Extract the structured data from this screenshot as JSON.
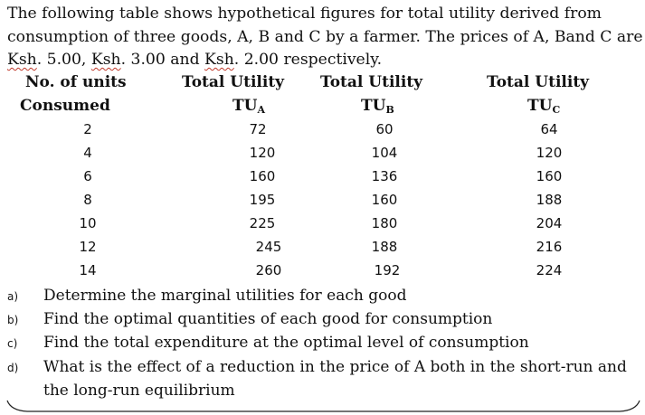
{
  "intro": {
    "line1": "The following table shows hypothetical figures for total utility derived from",
    "line2": "consumption of three goods, A, B and C by a farmer. The prices of A, Band C are",
    "line3_ksh1": "Ksh",
    "line3_rest1": ". 5.00, ",
    "line3_ksh2": "Ksh",
    "line3_rest2": ". 3.00 and ",
    "line3_ksh3": "Ksh",
    "line3_rest3": ". 2.00 respectively."
  },
  "table": {
    "headers": {
      "units_line1": "No. of units",
      "units_line2": "Consumed",
      "a_line1": "Total Utility",
      "a_main": "TU",
      "a_sub": "A",
      "b_line1": "Total Utility",
      "b_main": "TU",
      "b_sub": "B",
      "c_line1": "Total Utility",
      "c_main": "TU",
      "c_sub": "C"
    },
    "rows": [
      {
        "units": "2",
        "a": "72",
        "b": "60",
        "c": "64"
      },
      {
        "units": "4",
        "a": "120",
        "b": "104",
        "c": "120"
      },
      {
        "units": "6",
        "a": "160",
        "b": "136",
        "c": "160"
      },
      {
        "units": "8",
        "a": "195",
        "b": "160",
        "c": "188"
      },
      {
        "units": "10",
        "a": "225",
        "b": "180",
        "c": "204"
      },
      {
        "units": "12",
        "a": "245",
        "b": "188",
        "c": "216"
      },
      {
        "units": "14",
        "a": "260",
        "b": "192",
        "c": "224"
      }
    ]
  },
  "questions": [
    {
      "label": "a)",
      "text": "Determine the marginal utilities for each good"
    },
    {
      "label": "b)",
      "text": "Find the optimal quantities of each good for consumption"
    },
    {
      "label": "c)",
      "text": "Find the total expenditure at the optimal level of consumption"
    },
    {
      "label": "d)",
      "text": "What is the effect of a reduction in the price of A both in the short-run and"
    }
  ],
  "question_d_continued": "the long-run equilibrium"
}
